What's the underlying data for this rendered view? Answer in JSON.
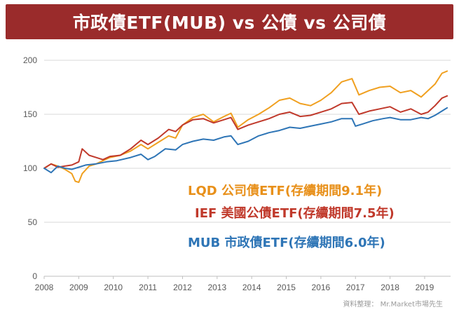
{
  "title": "市政債ETF(MUB) vs 公債 vs 公司債",
  "source_note": "資料整理： Mr.Market市場先生",
  "colors": {
    "banner": "#9a2b2b",
    "grid": "#d9d9d9",
    "axis": "#bfbfbf"
  },
  "chart_data": {
    "type": "line",
    "title": "市政債ETF(MUB) vs 公債 vs 公司債",
    "xlabel": "",
    "ylabel": "",
    "xlim": [
      2008,
      2019.75
    ],
    "ylim": [
      0,
      200
    ],
    "yticks": [
      0,
      50,
      100,
      150,
      200
    ],
    "xticks": [
      "2008",
      "2009",
      "2010",
      "2011",
      "2012",
      "2013",
      "2014",
      "2015",
      "2016",
      "2017",
      "2018",
      "2019"
    ],
    "grid": "horizontal",
    "series": [
      {
        "name": "LQD 公司債ETF(存續期間9.1年)",
        "color": "#f0a020",
        "x": [
          2008.0,
          2008.2,
          2008.4,
          2008.6,
          2008.8,
          2008.9,
          2009.0,
          2009.1,
          2009.3,
          2009.5,
          2009.7,
          2009.9,
          2010.2,
          2010.5,
          2010.8,
          2011.0,
          2011.3,
          2011.6,
          2011.8,
          2012.0,
          2012.3,
          2012.6,
          2012.9,
          2013.2,
          2013.4,
          2013.6,
          2013.9,
          2014.2,
          2014.5,
          2014.8,
          2015.1,
          2015.4,
          2015.7,
          2016.0,
          2016.3,
          2016.6,
          2016.9,
          2017.1,
          2017.4,
          2017.7,
          2018.0,
          2018.3,
          2018.6,
          2018.9,
          2019.1,
          2019.3,
          2019.5,
          2019.65
        ],
        "y": [
          100,
          104,
          102,
          99,
          95,
          88,
          87,
          95,
          102,
          104,
          107,
          110,
          112,
          116,
          122,
          118,
          124,
          130,
          128,
          140,
          147,
          150,
          143,
          148,
          151,
          138,
          145,
          150,
          156,
          163,
          165,
          160,
          158,
          163,
          170,
          180,
          183,
          168,
          172,
          175,
          176,
          170,
          172,
          166,
          172,
          178,
          188,
          190
        ]
      },
      {
        "name": "IEF 美國公債ETF(存續期間7.5年)",
        "color": "#c0392b",
        "x": [
          2008.0,
          2008.2,
          2008.4,
          2008.6,
          2008.8,
          2009.0,
          2009.1,
          2009.3,
          2009.5,
          2009.7,
          2009.9,
          2010.2,
          2010.5,
          2010.8,
          2011.0,
          2011.3,
          2011.6,
          2011.8,
          2012.0,
          2012.3,
          2012.6,
          2012.9,
          2013.2,
          2013.4,
          2013.6,
          2013.9,
          2014.2,
          2014.5,
          2014.8,
          2015.1,
          2015.4,
          2015.7,
          2016.0,
          2016.3,
          2016.6,
          2016.9,
          2017.1,
          2017.4,
          2017.7,
          2018.0,
          2018.3,
          2018.6,
          2018.9,
          2019.1,
          2019.3,
          2019.5,
          2019.65
        ],
        "y": [
          100,
          104,
          101,
          102,
          103,
          106,
          118,
          112,
          110,
          108,
          111,
          112,
          118,
          126,
          122,
          128,
          136,
          134,
          140,
          145,
          146,
          142,
          145,
          147,
          136,
          140,
          143,
          146,
          150,
          152,
          148,
          149,
          152,
          155,
          160,
          161,
          150,
          153,
          155,
          157,
          152,
          155,
          150,
          152,
          158,
          165,
          167
        ]
      },
      {
        "name": "MUB 市政債ETF(存續期間6.0年)",
        "color": "#2e75b6",
        "x": [
          2008.0,
          2008.2,
          2008.4,
          2008.6,
          2008.8,
          2009.0,
          2009.2,
          2009.5,
          2009.8,
          2010.1,
          2010.5,
          2010.8,
          2011.0,
          2011.2,
          2011.5,
          2011.8,
          2012.0,
          2012.3,
          2012.6,
          2012.9,
          2013.2,
          2013.4,
          2013.6,
          2013.9,
          2014.2,
          2014.5,
          2014.8,
          2015.1,
          2015.4,
          2015.7,
          2016.0,
          2016.3,
          2016.6,
          2016.9,
          2017.0,
          2017.2,
          2017.5,
          2017.8,
          2018.0,
          2018.3,
          2018.6,
          2018.9,
          2019.1,
          2019.3,
          2019.5,
          2019.65
        ],
        "y": [
          100,
          96,
          102,
          100,
          99,
          101,
          103,
          104,
          106,
          107,
          110,
          113,
          108,
          111,
          118,
          117,
          122,
          125,
          127,
          126,
          129,
          130,
          122,
          125,
          130,
          133,
          135,
          138,
          137,
          139,
          141,
          143,
          146,
          146,
          139,
          141,
          144,
          146,
          147,
          145,
          145,
          147,
          146,
          149,
          153,
          156
        ]
      }
    ],
    "annotations": [
      "LQD 公司債ETF(存續期間9.1年)",
      "IEF 美國公債ETF(存續期間7.5年)",
      "MUB 市政債ETF(存續期間6.0年)"
    ]
  }
}
